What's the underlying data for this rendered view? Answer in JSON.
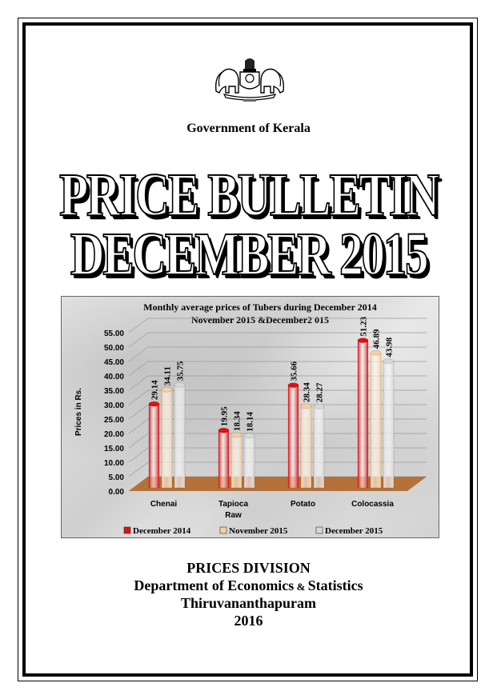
{
  "header": {
    "emblem_icon": "kerala-state-emblem-icon",
    "government": "Government of Kerala"
  },
  "title": {
    "line1": "PRICE BULLETIN",
    "line2": "DECEMBER 2015"
  },
  "chart_data": {
    "type": "bar",
    "title": "Monthly average prices of Tubers during  December  2014 November 2015 &December2 015",
    "title_line1": "Monthly average prices of Tubers during  December  2014",
    "title_line2": "November 2015 &December2 015",
    "ylabel": "Prices in Rs.",
    "xlabel": "",
    "ylim": [
      0,
      55
    ],
    "yticks": [
      "0.00",
      "5.00",
      "10.00",
      "15.00",
      "20.00",
      "25.00",
      "30.00",
      "35.00",
      "40.00",
      "45.00",
      "50.00",
      "55.00"
    ],
    "categories": [
      "Chenai",
      "Tapioca Raw",
      "Potato",
      "Colocassia"
    ],
    "category_lines": [
      [
        "Chenai"
      ],
      [
        "Tapioca",
        "Raw"
      ],
      [
        "Potato"
      ],
      [
        "Colocassia"
      ]
    ],
    "series": [
      {
        "name": "December 2014",
        "color": "#e01010",
        "values": [
          29.14,
          19.95,
          35.66,
          51.23
        ]
      },
      {
        "name": "November 2015",
        "color": "#f5d0a0",
        "values": [
          34.11,
          18.34,
          28.34,
          46.89
        ]
      },
      {
        "name": "December 2015",
        "color": "#d8d8d8",
        "values": [
          35.75,
          18.14,
          28.27,
          43.98
        ]
      }
    ],
    "labels": [
      [
        "29.14",
        "34.11",
        "35.75"
      ],
      [
        "19.95",
        "18.34",
        "18.14"
      ],
      [
        "35.66",
        "28.34",
        "28.27"
      ],
      [
        "51.23",
        "46.89",
        "43.98"
      ]
    ],
    "grid": true,
    "legend": "bottom"
  },
  "footer": {
    "division": "PRICES DIVISION",
    "department_a": "Department of Economics",
    "department_amp": " & ",
    "department_b": "Statistics",
    "city": "Thiruvananthapuram",
    "year": "2016"
  }
}
